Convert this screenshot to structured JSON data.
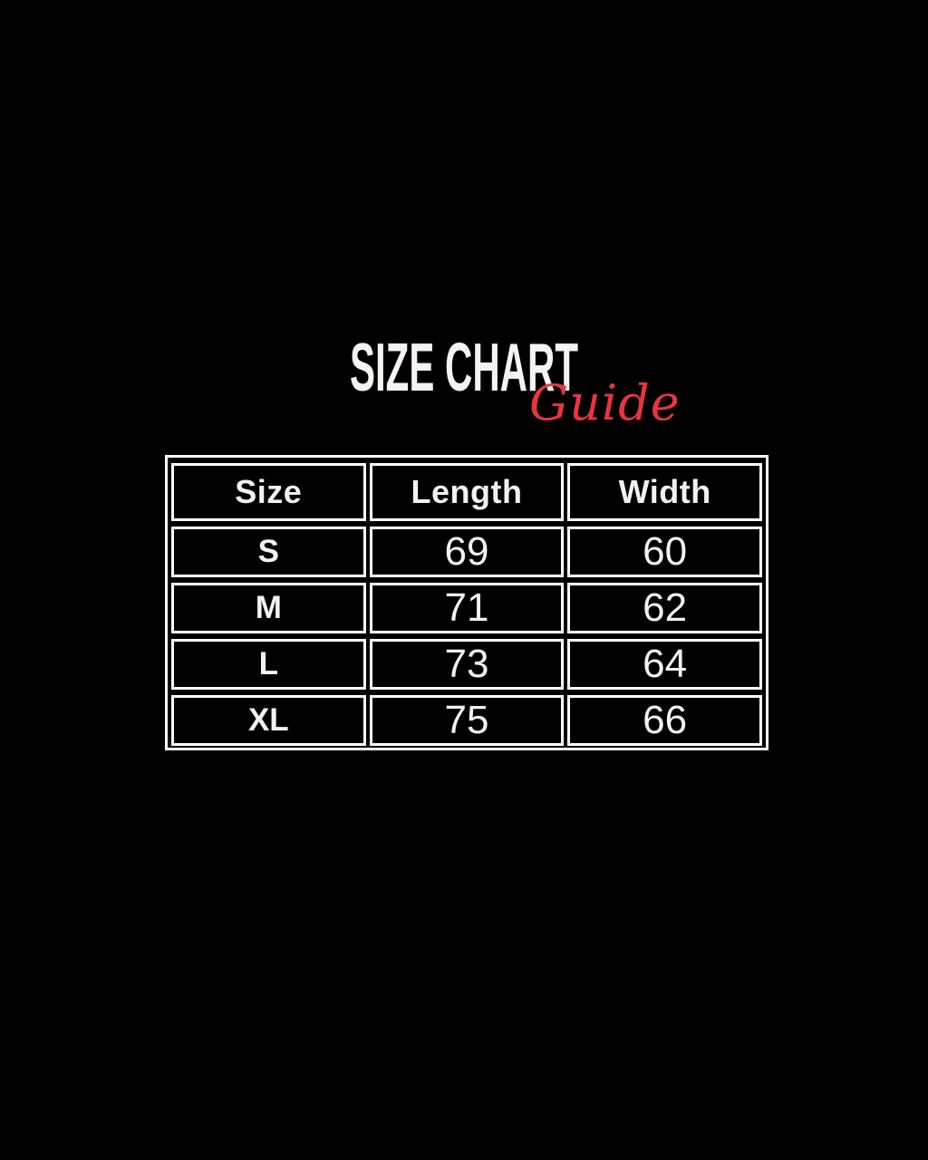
{
  "page": {
    "background_color": "#000000",
    "border_color": "#ffffff",
    "accent_color": "#e8353e",
    "text_color": "#f6f3f1"
  },
  "title": {
    "text": "SIZE CHART"
  },
  "subtitle": {
    "text": "Guide"
  },
  "size_table": {
    "columns": [
      "Size",
      "Length",
      "Width"
    ],
    "rows": [
      {
        "size": "S",
        "length": "69",
        "width": "60"
      },
      {
        "size": "M",
        "length": "71",
        "width": "62"
      },
      {
        "size": "L",
        "length": "73",
        "width": "64"
      },
      {
        "size": "XL",
        "length": "75",
        "width": "66"
      }
    ]
  },
  "chart_data": {
    "type": "table",
    "title": "SIZE CHART Guide",
    "columns": [
      "Size",
      "Length",
      "Width"
    ],
    "rows": [
      [
        "S",
        69,
        60
      ],
      [
        "M",
        71,
        62
      ],
      [
        "L",
        73,
        64
      ],
      [
        "XL",
        75,
        66
      ]
    ],
    "layout_hints": {
      "background": "black",
      "cell_style": "black cells with white borders",
      "columns_equal_width": true
    }
  }
}
